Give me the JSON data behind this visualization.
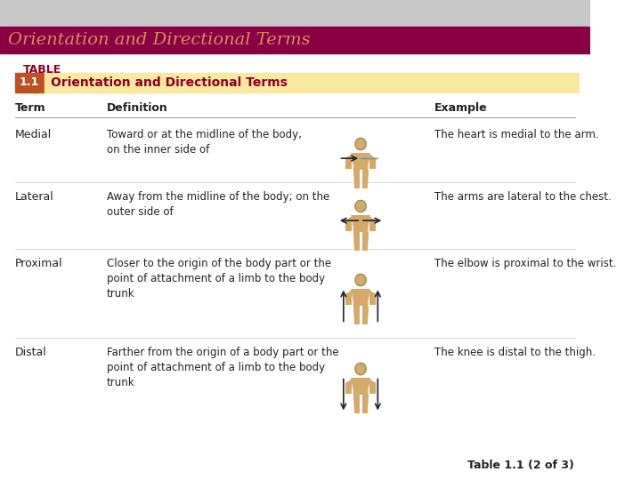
{
  "title": "Orientation and Directional Terms",
  "title_bg": "#8B0045",
  "title_color": "#D4915A",
  "table_label": "TABLE",
  "table_number": "1.1",
  "table_number_bg": "#C05020",
  "table_title": "Orientation and Directional Terms",
  "table_title_bg": "#FAE8A0",
  "table_title_color": "#8B0020",
  "header_color": "#222222",
  "col_headers": [
    "Term",
    "Definition",
    "Example"
  ],
  "rows": [
    {
      "term": "Medial",
      "definition": "Toward or at the midline of the body,\non the inner side of",
      "example": "The heart is medial to the arm."
    },
    {
      "term": "Lateral",
      "definition": "Away from the midline of the body; on the\nouter side of",
      "example": "The arms are lateral to the chest."
    },
    {
      "term": "Proximal",
      "definition": "Closer to the origin of the body part or the\npoint of attachment of a limb to the body\ntrunk",
      "example": "The elbow is proximal to the wrist."
    },
    {
      "term": "Distal",
      "definition": "Farther from the origin of a body part or the\npoint of attachment of a limb to the body\ntrunk",
      "example": "The knee is distal to the thigh."
    }
  ],
  "bg_color": "#FFFFFF",
  "row_line_color": "#CCCCCC",
  "footer_text": "Table 1.1 (2 of 3)",
  "body_color": "#D4A96A",
  "arrow_color": "#222222"
}
